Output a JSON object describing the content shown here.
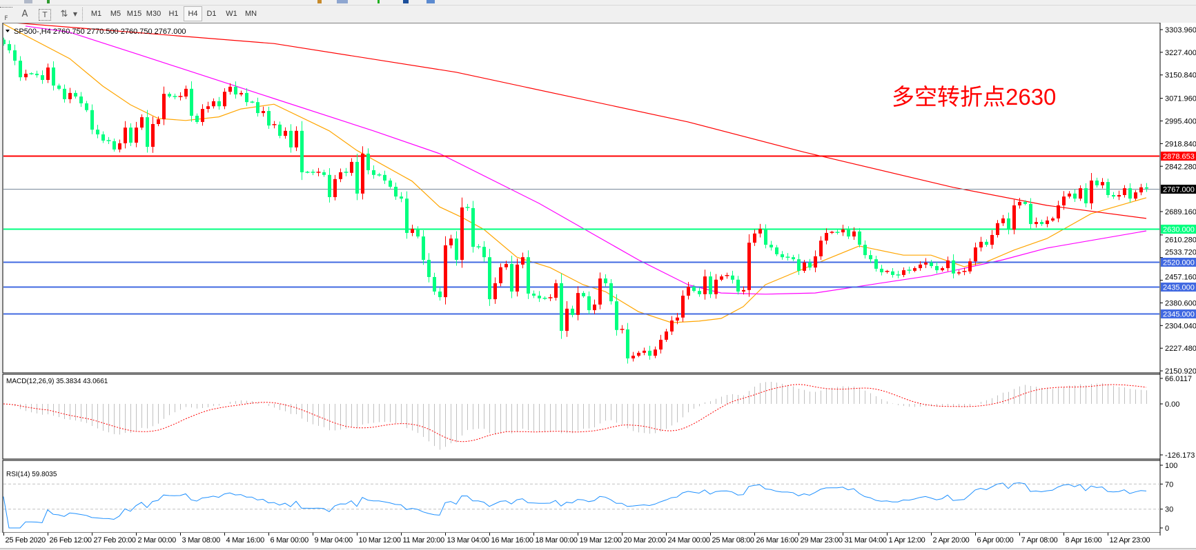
{
  "toolbar": {
    "tools": [
      {
        "name": "grid-icon",
        "glyph": "F"
      },
      {
        "name": "text-icon",
        "glyph": "A"
      },
      {
        "name": "text-label-icon",
        "glyph": "T"
      },
      {
        "name": "arrows-icon",
        "glyph": "⇅"
      }
    ],
    "timeframes": [
      "M1",
      "M5",
      "M15",
      "M30",
      "H1",
      "H4",
      "D1",
      "W1",
      "MN"
    ],
    "selected_timeframe": "H4"
  },
  "chart": {
    "header": "SP500-,H4  2760.750 2770.500 2760.750 2767.000",
    "annotation": "多空转折点2630",
    "annotation_color": "#ff0000",
    "up_color": "#ff0000",
    "down_color": "#00ff7f"
  },
  "chart_data": {
    "type": "candlestick",
    "symbol": "SP500-",
    "timeframe": "H4",
    "closes": [
      3255,
      3234,
      3199,
      3143,
      3155,
      3155,
      3150,
      3134,
      3176,
      3115,
      3104,
      3069,
      3090,
      3078,
      3055,
      3032,
      2966,
      2950,
      2929,
      2927,
      2899,
      2920,
      2973,
      2922,
      2973,
      3008,
      2908,
      2985,
      3001,
      3087,
      3078,
      3076,
      3078,
      3104,
      3013,
      2992,
      3036,
      3045,
      3062,
      3045,
      3094,
      3111,
      3085,
      3090,
      3059,
      3059,
      3022,
      3029,
      2980,
      2983,
      2945,
      2962,
      2906,
      2962,
      2822,
      2822,
      2820,
      2822,
      2813,
      2738,
      2799,
      2822,
      2820,
      2857,
      2750,
      2885,
      2829,
      2813,
      2813,
      2794,
      2773,
      2740,
      2733,
      2617,
      2631,
      2605,
      2526,
      2468,
      2419,
      2400,
      2575,
      2598,
      2526,
      2703,
      2701,
      2570,
      2570,
      2535,
      2393,
      2447,
      2501,
      2512,
      2419,
      2510,
      2535,
      2412,
      2405,
      2396,
      2396,
      2398,
      2447,
      2286,
      2361,
      2340,
      2414,
      2403,
      2356,
      2375,
      2463,
      2447,
      2386,
      2289,
      2291,
      2193,
      2202,
      2212,
      2219,
      2202,
      2223,
      2256,
      2284,
      2321,
      2331,
      2405,
      2435,
      2421,
      2410,
      2470,
      2410,
      2459,
      2470,
      2473,
      2459,
      2419,
      2424,
      2584,
      2615,
      2631,
      2577,
      2568,
      2545,
      2535,
      2535,
      2528,
      2489,
      2517,
      2500,
      2538,
      2591,
      2617,
      2619,
      2619,
      2629,
      2605,
      2622,
      2577,
      2542,
      2528,
      2496,
      2484,
      2487,
      2475,
      2475,
      2491,
      2489,
      2498,
      2510,
      2517,
      2505,
      2491,
      2498,
      2524,
      2480,
      2484,
      2487,
      2521,
      2568,
      2587,
      2577,
      2610,
      2650,
      2666,
      2628,
      2710,
      2722,
      2715,
      2647,
      2654,
      2647,
      2659,
      2666,
      2710,
      2740,
      2750,
      2733,
      2768,
      2717,
      2794,
      2778,
      2789,
      2745,
      2740,
      2745,
      2768,
      2733,
      2754,
      2771,
      2767
    ],
    "moving_averages": [
      {
        "color": "#ffa500",
        "points": [
          [
            0,
            3323
          ],
          [
            12,
            3206
          ],
          [
            18,
            3113
          ],
          [
            23,
            3050
          ],
          [
            28,
            3004
          ],
          [
            33,
            2997
          ],
          [
            39,
            3009
          ],
          [
            43,
            3036
          ],
          [
            49,
            3052
          ],
          [
            59,
            2962
          ],
          [
            64,
            2896
          ],
          [
            74,
            2792
          ],
          [
            79,
            2705
          ],
          [
            83,
            2670
          ],
          [
            87,
            2629
          ],
          [
            93,
            2535
          ],
          [
            99,
            2500
          ],
          [
            105,
            2442
          ],
          [
            109,
            2419
          ],
          [
            115,
            2351
          ],
          [
            121,
            2314
          ],
          [
            126,
            2319
          ],
          [
            130,
            2328
          ],
          [
            134,
            2368
          ],
          [
            138,
            2442
          ],
          [
            147,
            2512
          ],
          [
            155,
            2573
          ],
          [
            163,
            2542
          ],
          [
            168,
            2542
          ],
          [
            174,
            2503
          ],
          [
            178,
            2519
          ],
          [
            183,
            2559
          ],
          [
            189,
            2598
          ],
          [
            197,
            2682
          ],
          [
            207,
            2736
          ]
        ]
      },
      {
        "color": "#ff00ff",
        "points": [
          [
            4,
            3316
          ],
          [
            12,
            3295
          ],
          [
            24,
            3223
          ],
          [
            37,
            3144
          ],
          [
            49,
            3071
          ],
          [
            67,
            2962
          ],
          [
            79,
            2885
          ],
          [
            97,
            2717
          ],
          [
            115,
            2526
          ],
          [
            124,
            2442
          ],
          [
            130,
            2414
          ],
          [
            138,
            2410
          ],
          [
            147,
            2414
          ],
          [
            168,
            2473
          ],
          [
            181,
            2526
          ],
          [
            189,
            2566
          ],
          [
            207,
            2624
          ]
        ]
      },
      {
        "color": "#ff0000",
        "points": [
          [
            0,
            3330
          ],
          [
            49,
            3257
          ],
          [
            82,
            3160
          ],
          [
            124,
            2992
          ],
          [
            145,
            2890
          ],
          [
            172,
            2771
          ],
          [
            189,
            2710
          ],
          [
            207,
            2666
          ]
        ]
      }
    ],
    "price_axis": {
      "range": [
        2150.92,
        3303.96
      ],
      "ticks": [
        "3303.960",
        "3227.400",
        "3150.840",
        "3071.960",
        "2995.400",
        "2918.840",
        "2842.280",
        "2689.160",
        "2610.280",
        "2533.720",
        "2457.160",
        "2380.600",
        "2304.040",
        "2227.480",
        "2150.920"
      ]
    },
    "current_price": {
      "value": 2767.0,
      "label": "2767.000",
      "color": "#778899"
    },
    "horizontal_levels": [
      {
        "value": 2878.653,
        "label": "2878.653",
        "color": "#ff0000"
      },
      {
        "value": 2630.0,
        "label": "2630.000",
        "color": "#00ff7f"
      },
      {
        "value": 2520.0,
        "label": "2520.000",
        "color": "#4169e1"
      },
      {
        "value": 2435.0,
        "label": "2435.000",
        "color": "#4169e1"
      },
      {
        "value": 2345.0,
        "label": "2345.000",
        "color": "#4169e1"
      }
    ],
    "time_axis_labels": [
      "25 Feb 2020",
      "26 Feb 12:00",
      "27 Feb 20:00",
      "2 Mar 00:00",
      "3 Mar 08:00",
      "4 Mar 16:00",
      "6 Mar 00:00",
      "9 Mar 04:00",
      "10 Mar 12:00",
      "11 Mar 20:00",
      "13 Mar 04:00",
      "16 Mar 16:00",
      "18 Mar 00:00",
      "19 Mar 12:00",
      "20 Mar 20:00",
      "24 Mar 00:00",
      "25 Mar 08:00",
      "26 Mar 16:00",
      "29 Mar 23:00",
      "31 Mar 04:00",
      "1 Apr 12:00",
      "2 Apr 20:00",
      "6 Apr 00:00",
      "7 Apr 08:00",
      "8 Apr 16:00",
      "12 Apr 23:00"
    ],
    "macd": {
      "label": "MACD(12,26,9) 35.3834 43.0661",
      "ticks": [
        "66.0117",
        "0.00",
        "-126.173"
      ],
      "range": [
        -126.173,
        66.0117
      ],
      "histogram_color": "#c0c0c0",
      "signal_color": "#ff0000"
    },
    "rsi": {
      "label": "RSI(14) 59.8035",
      "ticks": [
        "100",
        "70",
        "30",
        "0"
      ],
      "levels": [
        70,
        30
      ],
      "color": "#1e90ff"
    }
  }
}
